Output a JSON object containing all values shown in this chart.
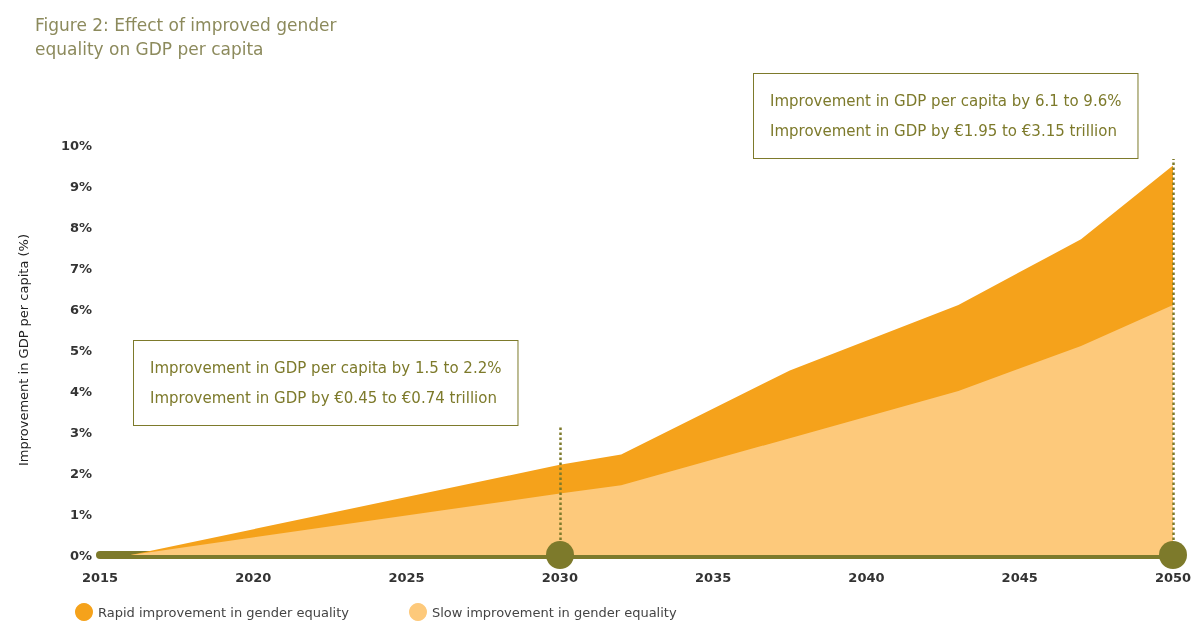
{
  "chart_data": {
    "type": "area",
    "title": "Figure 2: Effect of improved gender\nequality on GDP per capita",
    "ylabel": "Improvement in GDP per capita (%)",
    "x": [
      2015,
      2016,
      2030,
      2032,
      2037.5,
      2043,
      2047,
      2050
    ],
    "series": [
      {
        "name": "Rapid improvement in gender equality",
        "color": "#f5a21b",
        "values": [
          0,
          0,
          2.2,
          2.45,
          4.5,
          6.1,
          7.7,
          9.5
        ]
      },
      {
        "name": "Slow improvement in gender equality",
        "color": "#fdc97b",
        "values": [
          0,
          0,
          1.5,
          1.7,
          2.85,
          4.0,
          5.1,
          6.1
        ]
      }
    ],
    "xlim": [
      2015,
      2050
    ],
    "xticks": [
      2015,
      2020,
      2025,
      2030,
      2035,
      2040,
      2045,
      2050
    ],
    "ylim": [
      0,
      10
    ],
    "yticks": [
      {
        "value": 0,
        "label": "0%"
      },
      {
        "value": 1,
        "label": "1%"
      },
      {
        "value": 2,
        "label": "2%"
      },
      {
        "value": 3,
        "label": "3%"
      },
      {
        "value": 4,
        "label": "4%"
      },
      {
        "value": 5,
        "label": "5%"
      },
      {
        "value": 6,
        "label": "6%"
      },
      {
        "value": 7,
        "label": "7%"
      },
      {
        "value": 8,
        "label": "8%"
      },
      {
        "value": 9,
        "label": "9%"
      },
      {
        "value": 10,
        "label": "10%"
      }
    ],
    "annotations": [
      "Improvement in GDP per capita by 1.5 to 2.2%\nImprovement in GDP by €0.45 to €0.74 trillion",
      "Improvement in GDP per capita by 6.1 to 9.6%\nImprovement in GDP by €1.95 to €3.15 trillion"
    ],
    "ref_lines": [
      {
        "axis": "x",
        "value": 2030,
        "color": "#7d7a2b",
        "line_style": "dotted"
      },
      {
        "axis": "x",
        "value": 2050,
        "color": "#7d7a2b",
        "line_style": "dotted"
      }
    ],
    "grid": false,
    "legend": "bottom left",
    "marker": "none"
  }
}
